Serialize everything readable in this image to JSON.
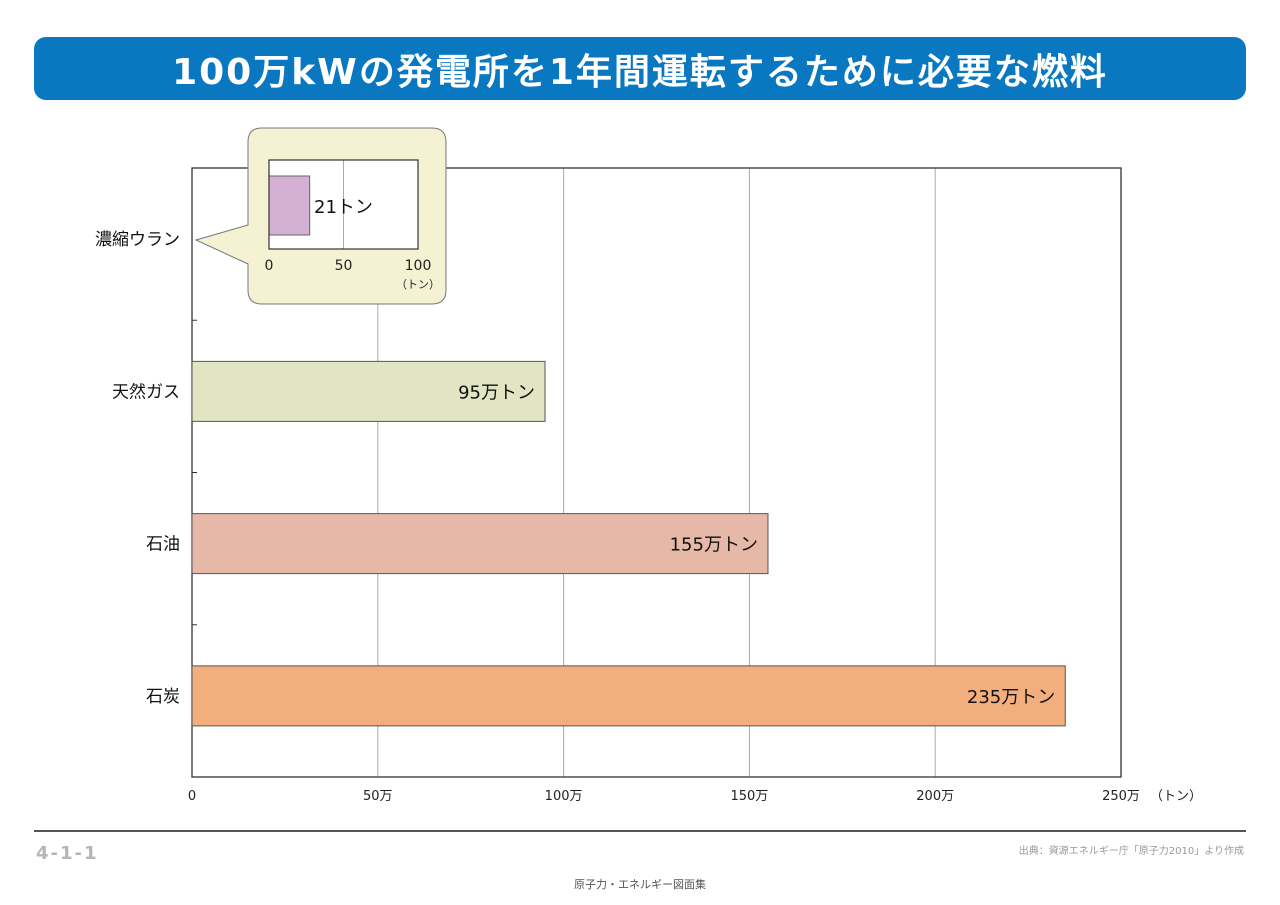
{
  "title": "100万kWの発電所を1年間運転するために必要な燃料",
  "figure_number": "4-1-1",
  "source": "出典：資源エネルギー庁「原子力2010」より作成",
  "footer": "原子力・エネルギー図面集",
  "chart_data": {
    "type": "bar",
    "orientation": "horizontal",
    "title": "100万kWの発電所を1年間運転するために必要な燃料",
    "categories": [
      "濃縮ウラン",
      "天然ガス",
      "石油",
      "石炭"
    ],
    "values": [
      null,
      95,
      155,
      235
    ],
    "value_labels": [
      "",
      "95万トン",
      "155万トン",
      "235万トン"
    ],
    "colors": [
      "#d4b0d4",
      "#e1e5c2",
      "#e5b8a8",
      "#f3ae7e"
    ],
    "x_unit_label": "（トン）",
    "xlim": [
      0,
      250
    ],
    "x_ticks": [
      0,
      50,
      100,
      150,
      200,
      250
    ],
    "x_tick_labels": [
      "0",
      "50万",
      "100万",
      "150万",
      "200万",
      "250万"
    ],
    "grid": true,
    "inset": {
      "category": "濃縮ウラン",
      "value": 21,
      "value_label": "21トン",
      "xlim": [
        0,
        100
      ],
      "x_tick_labels": [
        "0",
        "50",
        "100"
      ],
      "x_unit_label": "（トン）",
      "color": "#d4b0d4"
    }
  }
}
